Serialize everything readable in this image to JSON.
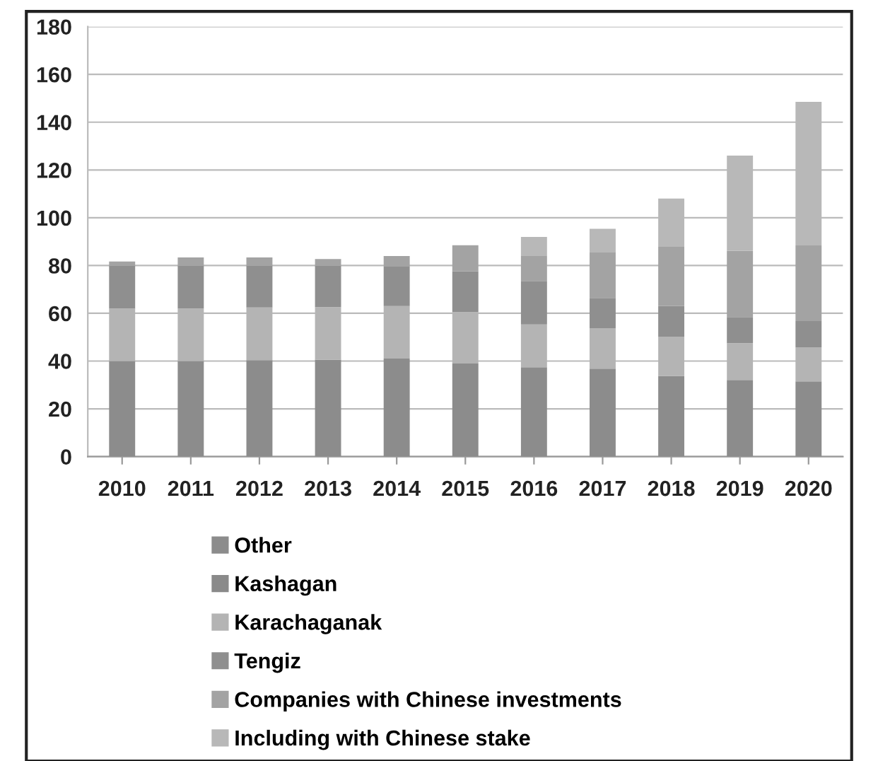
{
  "chart_data": {
    "type": "bar",
    "stacked": true,
    "categories": [
      "2010",
      "2011",
      "2012",
      "2013",
      "2014",
      "2015",
      "2016",
      "2017",
      "2018",
      "2019",
      "2020"
    ],
    "series": [
      {
        "name": "Other",
        "color": "#8c8c8c",
        "values": [
          40,
          40,
          40.4,
          40.6,
          41,
          39,
          37.4,
          36.8,
          33.8,
          32.1,
          31.5
        ]
      },
      {
        "name": "Kashagan",
        "color": "#8a8a8a",
        "values": [
          null,
          null,
          null,
          null,
          null,
          null,
          null,
          null,
          null,
          null,
          null
        ]
      },
      {
        "name": "Karachaganak",
        "color": "#b4b4b4",
        "values": [
          22,
          22,
          22,
          22,
          22,
          21.5,
          17.9,
          17,
          16.4,
          15.4,
          14.3
        ]
      },
      {
        "name": "Tengiz",
        "color": "#8f8f8f",
        "values": [
          18,
          18,
          17.6,
          17.4,
          16.5,
          17,
          18.2,
          12.6,
          12.8,
          10.9,
          10.9
        ]
      },
      {
        "name": "Companies with Chinese investments",
        "color": "#a3a3a3",
        "values": [
          1.7,
          3.4,
          3.4,
          2.7,
          4.5,
          11,
          10.7,
          19.3,
          24.8,
          27.7,
          31.7
        ]
      },
      {
        "name": "Including with Chinese stake",
        "color": "#b8b8b8",
        "values": [
          null,
          null,
          null,
          null,
          null,
          null,
          7.8,
          9.7,
          20.2,
          39.9,
          60.1
        ]
      }
    ],
    "ylim": [
      0,
      180
    ],
    "yticks": [
      0,
      20,
      40,
      60,
      80,
      100,
      120,
      140,
      160,
      180
    ],
    "grid": "y",
    "legend": "bottom"
  }
}
